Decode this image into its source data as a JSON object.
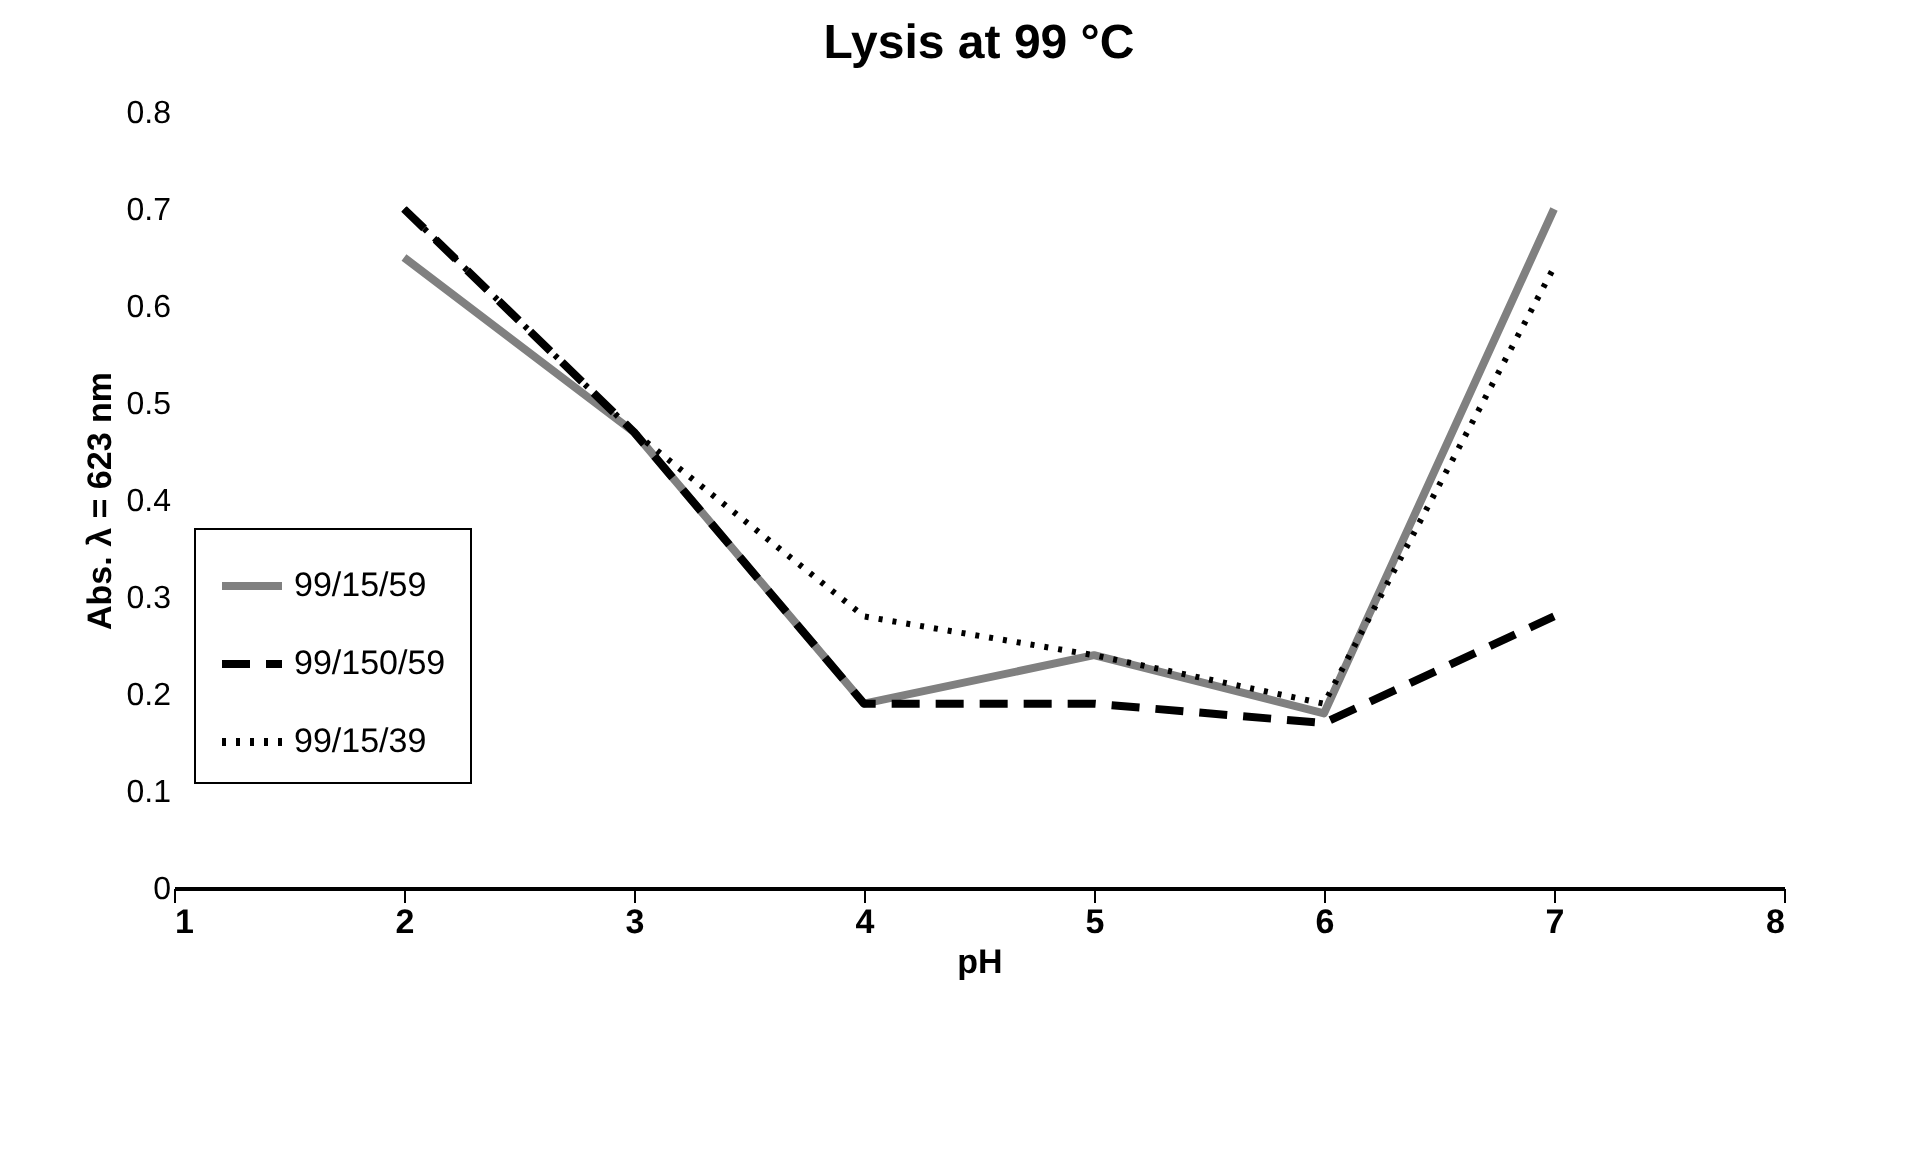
{
  "chart_data": {
    "type": "line",
    "title": "Lysis at 99 °C",
    "xlabel": "pH",
    "ylabel": "Abs. λ = 623 nm",
    "x": [
      2,
      3,
      4,
      5,
      6,
      7
    ],
    "series": [
      {
        "name": "99/15/59",
        "color": "#808080",
        "line_style": "solid",
        "values": [
          0.65,
          0.47,
          0.19,
          0.24,
          0.18,
          0.7
        ]
      },
      {
        "name": "99/150/59",
        "color": "#000000",
        "line_style": "dashed",
        "values": [
          0.7,
          0.47,
          0.19,
          0.19,
          0.17,
          0.28
        ]
      },
      {
        "name": "99/15/39",
        "color": "#000000",
        "line_style": "dotted",
        "values": [
          0.7,
          0.47,
          0.28,
          0.24,
          0.19,
          0.64
        ]
      }
    ],
    "xlim": [
      1,
      8
    ],
    "xticks": [
      1,
      2,
      3,
      4,
      5,
      6,
      7,
      8
    ],
    "ylim": [
      0,
      0.8
    ],
    "yticks": [
      0,
      0.1,
      0.2,
      0.3,
      0.4,
      0.5,
      0.6,
      0.7,
      0.8
    ],
    "grid": false,
    "legend": "bottom left",
    "marker": "none"
  }
}
